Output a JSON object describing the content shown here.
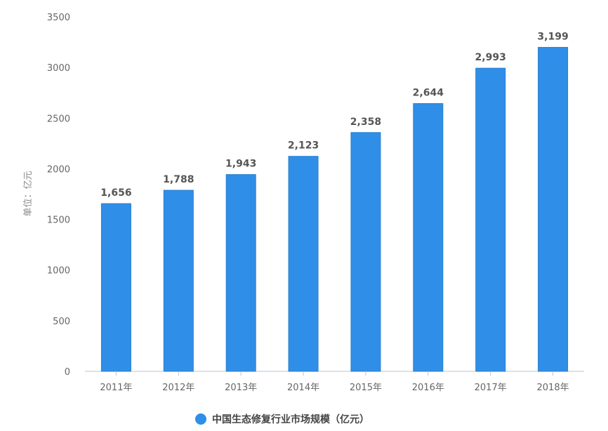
{
  "chart_data": {
    "type": "bar",
    "title": "",
    "xlabel": "",
    "ylabel": "单位：亿元",
    "categories": [
      "2011年",
      "2012年",
      "2013年",
      "2014年",
      "2015年",
      "2016年",
      "2017年",
      "2018年"
    ],
    "series": [
      {
        "name": "中国生态修复行业市场规模（亿元）",
        "values": [
          1656,
          1788,
          1943,
          2123,
          2358,
          2644,
          2993,
          3199
        ],
        "labels": [
          "1,656",
          "1,788",
          "1,943",
          "2,123",
          "2,358",
          "2,644",
          "2,993",
          "3,199"
        ]
      }
    ],
    "ylim": [
      0,
      3500
    ],
    "yticks": [
      0,
      500,
      1000,
      1500,
      2000,
      2500,
      3000,
      3500
    ],
    "grid": false,
    "legend_position": "bottom",
    "colors": {
      "bar": "#2f8fe8",
      "bar_border": "#2a7fc9",
      "axis": "#b8c4d0"
    }
  }
}
